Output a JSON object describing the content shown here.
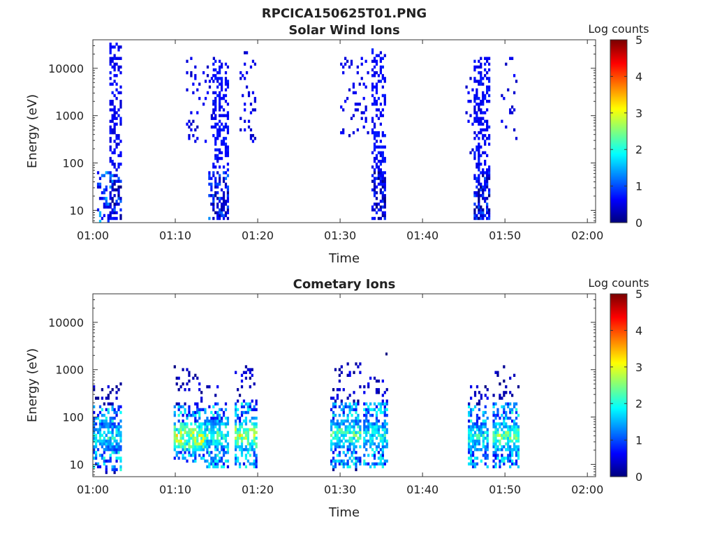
{
  "figure_title": "RPCICA150625T01.PNG",
  "colorscale": [
    "#00007f",
    "#0000ff",
    "#007fff",
    "#00ffff",
    "#7fff7f",
    "#ffff00",
    "#ff7f00",
    "#ff0000",
    "#7f0000"
  ],
  "chart_data": [
    {
      "type": "heatmap",
      "title": "Solar Wind Ions",
      "xlabel": "Time",
      "ylabel": "Energy (eV)",
      "colorbar_label": "Log counts",
      "colorbar_ticks": [
        "0",
        "1",
        "2",
        "3",
        "4",
        "5"
      ],
      "clim": [
        0,
        5
      ],
      "y_log": true,
      "ylim": [
        5.5,
        40000
      ],
      "xlim_minutes": [
        0,
        61
      ],
      "x_ticks": [
        "01:00",
        "01:10",
        "01:20",
        "01:30",
        "01:40",
        "01:50",
        "02:00"
      ],
      "y_ticks": [
        "10",
        "100",
        "1000",
        "10000"
      ],
      "bursts": [
        {
          "t": [
            1.8,
            3.4
          ],
          "e": [
            6,
            33000
          ],
          "tail": [
            0.5,
            2.5
          ],
          "level": 0.4,
          "lowpeak": 1.4
        },
        {
          "t": [
            11.3,
            14.6
          ],
          "e": [
            250,
            16000
          ],
          "level": 0.3,
          "sparse": true
        },
        {
          "t": [
            14.4,
            16.4
          ],
          "e": [
            6,
            15000
          ],
          "tail": [
            14.0,
            14.8
          ],
          "level": 0.45,
          "lowpeak": 1.2
        },
        {
          "t": [
            17.8,
            19.6
          ],
          "e": [
            250,
            22000
          ],
          "level": 0.3,
          "sparse": true
        },
        {
          "t": [
            30.0,
            33.5
          ],
          "e": [
            350,
            16000
          ],
          "level": 0.3,
          "sparse": true
        },
        {
          "t": [
            33.8,
            35.5
          ],
          "e": [
            6,
            26000
          ],
          "level": 0.45,
          "lowpeak": 0.9
        },
        {
          "t": [
            45.2,
            47.0
          ],
          "e": [
            100,
            6000
          ],
          "level": 0.3,
          "sparse": true
        },
        {
          "t": [
            46.2,
            48.2
          ],
          "e": [
            6,
            16000
          ],
          "level": 0.45,
          "lowpeak": 1.1
        },
        {
          "t": [
            49.5,
            51.5
          ],
          "e": [
            300,
            16000
          ],
          "level": 0.3,
          "sparse": true
        }
      ]
    },
    {
      "type": "heatmap",
      "title": "Cometary Ions",
      "xlabel": "Time",
      "ylabel": "Energy (eV)",
      "colorbar_label": "Log counts",
      "colorbar_ticks": [
        "0",
        "1",
        "2",
        "3",
        "4",
        "5"
      ],
      "clim": [
        0,
        5
      ],
      "y_log": true,
      "ylim": [
        5.5,
        40000
      ],
      "xlim_minutes": [
        0,
        61
      ],
      "x_ticks": [
        "01:00",
        "01:10",
        "01:20",
        "01:30",
        "01:40",
        "01:50",
        "02:00"
      ],
      "y_ticks": [
        "10",
        "100",
        "1000",
        "10000"
      ],
      "bursts": [
        {
          "t": [
            0.0,
            3.5
          ],
          "e": [
            6,
            500
          ],
          "peak_e": 35,
          "peak": 2.2
        },
        {
          "t": [
            9.8,
            13.5
          ],
          "e": [
            10,
            1100
          ],
          "peak_e": 35,
          "peak": 3.3
        },
        {
          "t": [
            13.5,
            16.3
          ],
          "e": [
            8,
            450
          ],
          "peak_e": 40,
          "peak": 2.6
        },
        {
          "t": [
            17.2,
            19.8
          ],
          "e": [
            8,
            1200
          ],
          "peak_e": 38,
          "peak": 3.2
        },
        {
          "t": [
            28.8,
            32.5
          ],
          "e": [
            6,
            1300
          ],
          "peak_e": 40,
          "peak": 2.6
        },
        {
          "t": [
            32.8,
            35.8
          ],
          "e": [
            8,
            700
          ],
          "peak_e": 40,
          "peak": 2.3
        },
        {
          "t": [
            45.5,
            48.0
          ],
          "e": [
            8,
            450
          ],
          "peak_e": 35,
          "peak": 2.3
        },
        {
          "t": [
            48.5,
            51.7
          ],
          "e": [
            8,
            1100
          ],
          "peak_e": 38,
          "peak": 2.8
        }
      ],
      "outliers": [
        {
          "t": 35.5,
          "e": 2000
        }
      ]
    }
  ]
}
